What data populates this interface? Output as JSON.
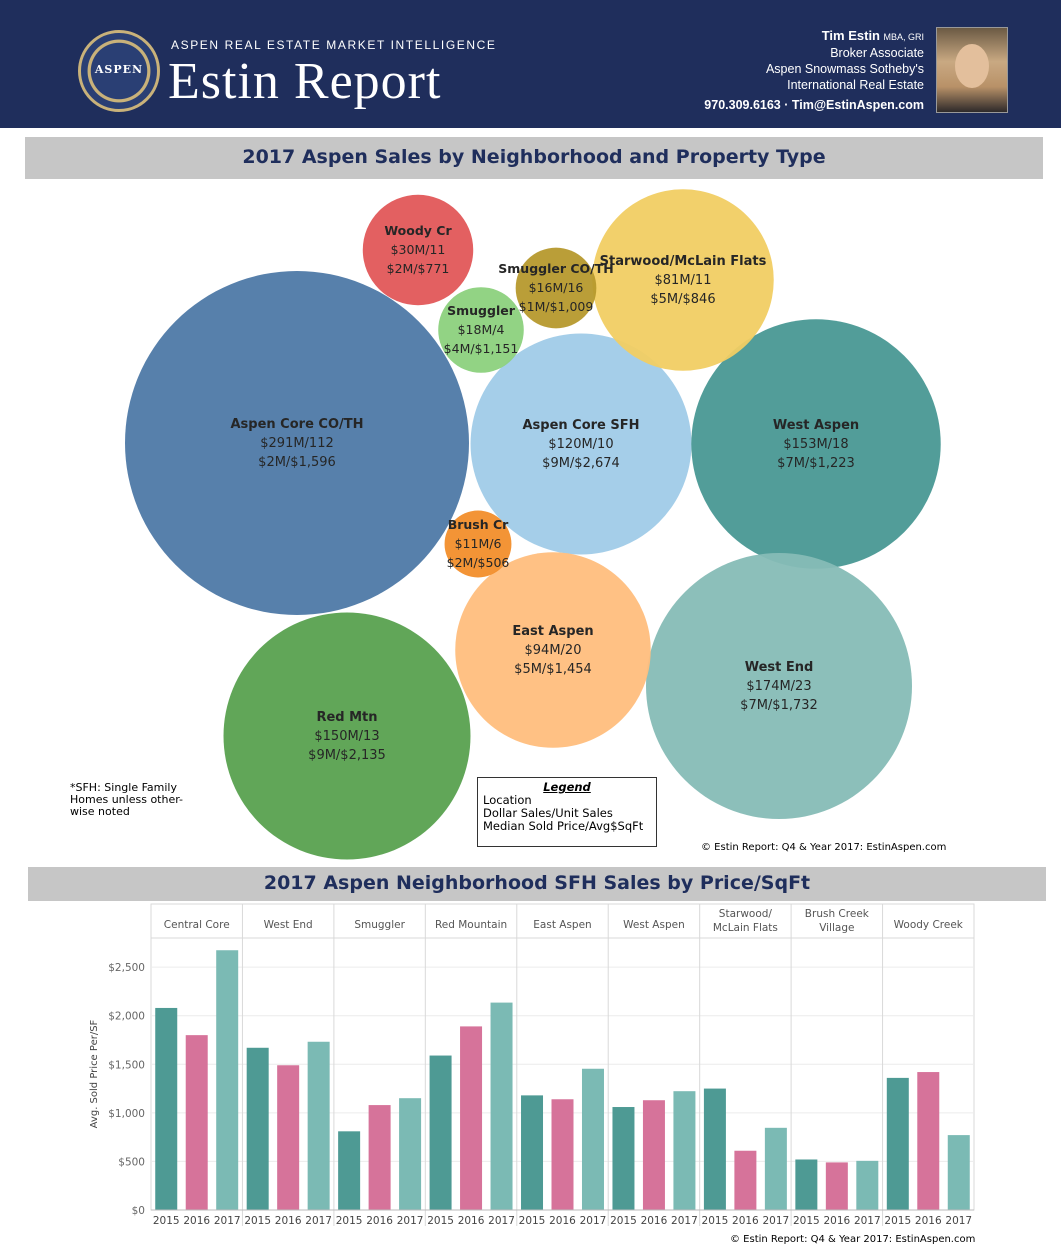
{
  "header": {
    "seal_text": "ASPEN",
    "tagline": "ASPEN REAL ESTATE MARKET INTELLIGENCE",
    "brand": "Estin Report",
    "contact_name": "Tim Estin",
    "contact_creds": "MBA, GRI",
    "contact_lines": [
      "Broker Associate",
      "Aspen Snowmass Sotheby's",
      "International Real Estate"
    ],
    "contact_phone": "970.309.6163 · Tim@EstinAspen.com"
  },
  "bubble_section": {
    "title": "2017 Aspen Sales by Neighborhood and Property Type",
    "footnote": "*SFH: Single Family\nHomes unless other-\nwise noted",
    "legend_title": "Legend",
    "legend_lines": [
      "Location",
      "Dollar Sales/Unit Sales",
      "Median Sold Price/Avg$SqFt"
    ],
    "copyright": "© Estin Report: Q4 & Year 2017: EstinAspen.com"
  },
  "bar_section": {
    "title": "2017 Aspen Neighborhood SFH Sales by Price/SqFt",
    "copyright": "© Estin Report: Q4 & Year 2017: EstinAspen.com"
  },
  "chart_data": [
    {
      "type": "bubble",
      "title": "2017 Aspen Sales by Neighborhood and Property Type",
      "bubbles": [
        {
          "location": "Aspen Core CO/TH",
          "dollar_sales": "$291M",
          "unit_sales": 112,
          "median_price": "$2M",
          "avg_psf": "$1,596",
          "sales_musd": 291,
          "color": "#4e79a7"
        },
        {
          "location": "Aspen Core SFH",
          "dollar_sales": "$120M",
          "unit_sales": 10,
          "median_price": "$9M",
          "avg_psf": "$2,674",
          "sales_musd": 120,
          "color": "#a0cbe8"
        },
        {
          "location": "West Aspen",
          "dollar_sales": "$153M",
          "unit_sales": 18,
          "median_price": "$7M",
          "avg_psf": "$1,223",
          "sales_musd": 153,
          "color": "#499894"
        },
        {
          "location": "West End",
          "dollar_sales": "$174M",
          "unit_sales": 23,
          "median_price": "$7M",
          "avg_psf": "$1,732",
          "sales_musd": 174,
          "color": "#86bcb6"
        },
        {
          "location": "Red Mtn",
          "dollar_sales": "$150M",
          "unit_sales": 13,
          "median_price": "$9M",
          "avg_psf": "$2,135",
          "sales_musd": 150,
          "color": "#59a14f"
        },
        {
          "location": "East Aspen",
          "dollar_sales": "$94M",
          "unit_sales": 20,
          "median_price": "$5M",
          "avg_psf": "$1,454",
          "sales_musd": 94,
          "color": "#ffbe7d"
        },
        {
          "location": "Starwood/McLain Flats",
          "dollar_sales": "$81M",
          "unit_sales": 11,
          "median_price": "$5M",
          "avg_psf": "$846",
          "sales_musd": 81,
          "color": "#f1ce63"
        },
        {
          "location": "Woody Cr",
          "dollar_sales": "$30M",
          "unit_sales": 11,
          "median_price": "$2M",
          "avg_psf": "$771",
          "sales_musd": 30,
          "color": "#e15759"
        },
        {
          "location": "Smuggler CO/TH",
          "dollar_sales": "$16M",
          "unit_sales": 16,
          "median_price": "$1M",
          "avg_psf": "$1,009",
          "sales_musd": 16,
          "color": "#b6992d"
        },
        {
          "location": "Smuggler",
          "dollar_sales": "$18M",
          "unit_sales": 4,
          "median_price": "$4M",
          "avg_psf": "$1,151",
          "sales_musd": 18,
          "color": "#8cd17d"
        },
        {
          "location": "Brush Cr",
          "dollar_sales": "$11M",
          "unit_sales": 6,
          "median_price": "$2M",
          "avg_psf": "$506",
          "sales_musd": 11,
          "color": "#f28e2b"
        }
      ]
    },
    {
      "type": "bar",
      "title": "2017 Aspen Neighborhood SFH Sales by Price/SqFt",
      "ylabel": "Avg. Sold Price Per/SF",
      "ylim": [
        0,
        2800
      ],
      "yticks": [
        0,
        500,
        1000,
        1500,
        2000,
        2500
      ],
      "ytick_labels": [
        "$0",
        "$500",
        "$1,000",
        "$1,500",
        "$2,000",
        "$2,500"
      ],
      "grid": true,
      "years": [
        "2015",
        "2016",
        "2017"
      ],
      "year_colors": [
        "#4e9a94",
        "#d6739a",
        "#7bbab4"
      ],
      "groups": [
        {
          "name": "Central Core",
          "values": [
            2080,
            1800,
            2674
          ]
        },
        {
          "name": "West End",
          "values": [
            1670,
            1490,
            1732
          ]
        },
        {
          "name": "Smuggler",
          "values": [
            810,
            1080,
            1151
          ]
        },
        {
          "name": "Red Mountain",
          "values": [
            1590,
            1890,
            2135
          ]
        },
        {
          "name": "East Aspen",
          "values": [
            1180,
            1140,
            1454
          ]
        },
        {
          "name": "West Aspen",
          "values": [
            1060,
            1130,
            1223
          ]
        },
        {
          "name": "Starwood/\nMcLain Flats",
          "values": [
            1250,
            610,
            846
          ]
        },
        {
          "name": "Brush Creek\nVillage",
          "values": [
            520,
            490,
            506
          ]
        },
        {
          "name": "Woody Creek",
          "values": [
            1360,
            1420,
            771
          ]
        }
      ]
    }
  ]
}
